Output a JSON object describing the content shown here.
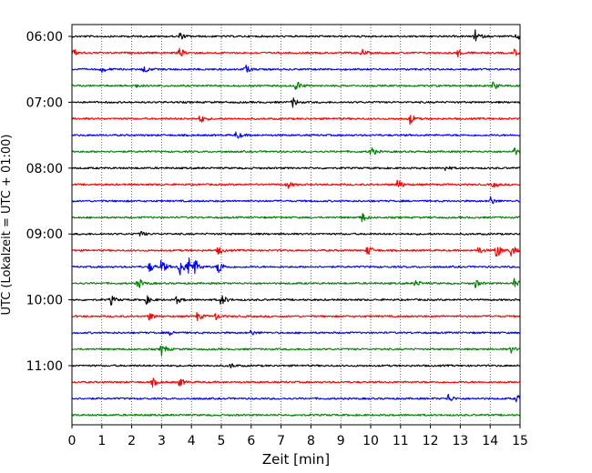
{
  "chart_data": {
    "type": "line",
    "title": "",
    "xlabel": "Zeit  [min]",
    "ylabel": "UTC (Lokalzeit = UTC + 01:00)",
    "xlim": [
      0,
      15
    ],
    "x_ticks": [
      "0",
      "1",
      "2",
      "3",
      "4",
      "5",
      "6",
      "7",
      "8",
      "9",
      "10",
      "11",
      "12",
      "13",
      "14",
      "15"
    ],
    "y_ticks": [
      "06:00",
      "07:00",
      "08:00",
      "09:00",
      "10:00",
      "11:00"
    ],
    "grid": "vertical dotted",
    "trace_interval_minutes": 15,
    "traces_per_hour": 4,
    "colors": [
      "#000000",
      "#ff0000",
      "#0000ff",
      "#008000"
    ],
    "traces": [
      {
        "start": "06:00",
        "color": "#000000",
        "events": [
          {
            "t": 3.6,
            "amp": 0.45
          },
          {
            "t": 13.5,
            "amp": 0.75
          },
          {
            "t": 14.9,
            "amp": 0.5
          }
        ]
      },
      {
        "start": "06:15",
        "color": "#ff0000",
        "events": [
          {
            "t": 0.05,
            "amp": 0.45
          },
          {
            "t": 3.6,
            "amp": 0.6
          },
          {
            "t": 9.7,
            "amp": 0.45
          },
          {
            "t": 12.9,
            "amp": 0.5
          },
          {
            "t": 14.8,
            "amp": 0.4
          }
        ]
      },
      {
        "start": "06:30",
        "color": "#0000ff",
        "events": [
          {
            "t": 1.0,
            "amp": 0.35
          },
          {
            "t": 2.4,
            "amp": 0.5
          },
          {
            "t": 5.8,
            "amp": 0.55
          }
        ]
      },
      {
        "start": "06:45",
        "color": "#008000",
        "events": [
          {
            "t": 2.1,
            "amp": 0.25
          },
          {
            "t": 7.5,
            "amp": 0.75
          },
          {
            "t": 14.1,
            "amp": 0.5
          }
        ]
      },
      {
        "start": "07:00",
        "color": "#000000",
        "events": [
          {
            "t": 7.4,
            "amp": 0.6
          }
        ]
      },
      {
        "start": "07:15",
        "color": "#ff0000",
        "events": [
          {
            "t": 4.3,
            "amp": 0.55
          },
          {
            "t": 11.3,
            "amp": 0.75
          }
        ]
      },
      {
        "start": "07:30",
        "color": "#0000ff",
        "events": [
          {
            "t": 5.5,
            "amp": 0.55
          }
        ]
      },
      {
        "start": "07:45",
        "color": "#008000",
        "events": [
          {
            "t": 10.0,
            "amp": 0.65
          },
          {
            "t": 14.8,
            "amp": 0.5
          }
        ]
      },
      {
        "start": "08:00",
        "color": "#000000",
        "events": [
          {
            "t": 12.5,
            "amp": 0.3
          }
        ]
      },
      {
        "start": "08:15",
        "color": "#ff0000",
        "events": [
          {
            "t": 7.2,
            "amp": 0.5
          },
          {
            "t": 10.9,
            "amp": 0.75
          },
          {
            "t": 14.1,
            "amp": 0.35
          }
        ]
      },
      {
        "start": "08:30",
        "color": "#0000ff",
        "events": [
          {
            "t": 14.0,
            "amp": 0.55
          }
        ]
      },
      {
        "start": "08:45",
        "color": "#008000",
        "events": [
          {
            "t": 9.7,
            "amp": 0.65
          }
        ]
      },
      {
        "start": "09:00",
        "color": "#000000",
        "events": [
          {
            "t": 2.3,
            "amp": 0.35
          }
        ]
      },
      {
        "start": "09:15",
        "color": "#ff0000",
        "events": [
          {
            "t": 4.9,
            "amp": 0.55
          },
          {
            "t": 9.9,
            "amp": 0.75
          },
          {
            "t": 13.6,
            "amp": 0.5
          },
          {
            "t": 14.2,
            "amp": 1.1
          },
          {
            "t": 14.7,
            "amp": 0.8
          }
        ]
      },
      {
        "start": "09:30",
        "color": "#0000ff",
        "events": [
          {
            "t": 2.6,
            "amp": 0.6
          },
          {
            "t": 3.0,
            "amp": 0.9
          },
          {
            "t": 3.6,
            "amp": 1.3
          },
          {
            "t": 3.9,
            "amp": 1.2
          },
          {
            "t": 4.1,
            "amp": 0.9
          },
          {
            "t": 4.9,
            "amp": 1.0
          }
        ]
      },
      {
        "start": "09:45",
        "color": "#008000",
        "events": [
          {
            "t": 2.2,
            "amp": 0.75
          },
          {
            "t": 11.5,
            "amp": 0.45
          },
          {
            "t": 13.5,
            "amp": 0.5
          },
          {
            "t": 14.8,
            "amp": 0.6
          }
        ]
      },
      {
        "start": "10:00",
        "color": "#000000",
        "events": [
          {
            "t": 1.3,
            "amp": 0.6
          },
          {
            "t": 2.5,
            "amp": 0.5
          },
          {
            "t": 3.5,
            "amp": 0.45
          },
          {
            "t": 5.0,
            "amp": 0.75
          }
        ]
      },
      {
        "start": "10:15",
        "color": "#ff0000",
        "events": [
          {
            "t": 2.6,
            "amp": 0.5
          },
          {
            "t": 4.2,
            "amp": 0.55
          },
          {
            "t": 4.8,
            "amp": 0.45
          }
        ]
      },
      {
        "start": "10:30",
        "color": "#0000ff",
        "events": [
          {
            "t": 3.3,
            "amp": 0.3
          },
          {
            "t": 6.0,
            "amp": 0.3
          }
        ]
      },
      {
        "start": "10:45",
        "color": "#008000",
        "events": [
          {
            "t": 3.0,
            "amp": 0.8
          },
          {
            "t": 14.7,
            "amp": 0.4
          }
        ]
      },
      {
        "start": "11:00",
        "color": "#000000",
        "events": [
          {
            "t": 5.3,
            "amp": 0.3
          }
        ]
      },
      {
        "start": "11:15",
        "color": "#ff0000",
        "events": [
          {
            "t": 2.7,
            "amp": 0.5
          },
          {
            "t": 3.6,
            "amp": 0.55
          }
        ]
      },
      {
        "start": "11:30",
        "color": "#0000ff",
        "events": [
          {
            "t": 12.6,
            "amp": 0.55
          },
          {
            "t": 14.9,
            "amp": 0.6
          }
        ]
      },
      {
        "start": "11:45",
        "color": "#008000",
        "events": []
      }
    ]
  }
}
